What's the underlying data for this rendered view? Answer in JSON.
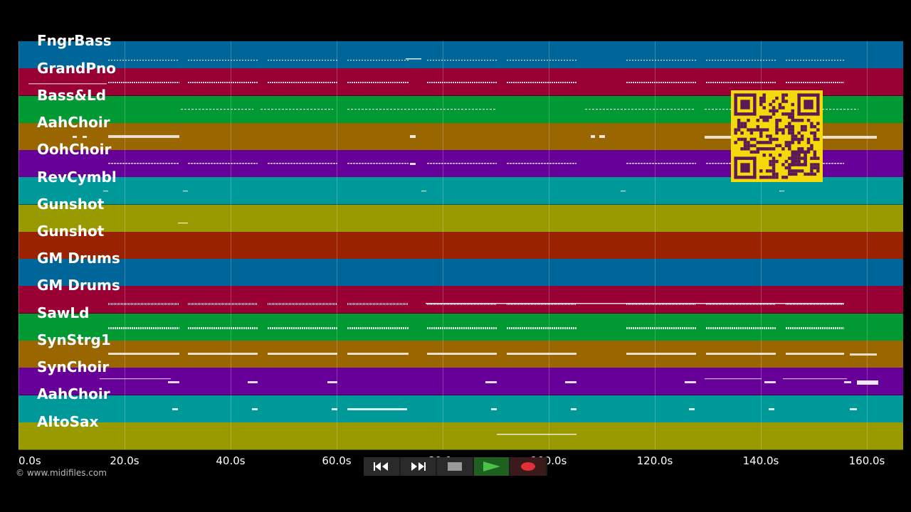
{
  "tracks": [
    {
      "label": "FngrBass",
      "color": "#006699"
    },
    {
      "label": "GrandPno",
      "color": "#990033"
    },
    {
      "label": "Bass&Ld",
      "color": "#009933"
    },
    {
      "label": "AahChoir",
      "color": "#996600"
    },
    {
      "label": "OohChoir",
      "color": "#660099"
    },
    {
      "label": "RevCymbl",
      "color": "#009999"
    },
    {
      "label": "Gunshot",
      "color": "#999900"
    },
    {
      "label": "Gunshot",
      "color": "#992200"
    },
    {
      "label": "GM Drums",
      "color": "#006699"
    },
    {
      "label": "GM Drums",
      "color": "#990033"
    },
    {
      "label": "SawLd",
      "color": "#009933"
    },
    {
      "label": "SynStrg1",
      "color": "#996600"
    },
    {
      "label": "SynChoir",
      "color": "#660099"
    },
    {
      "label": "AahChoir",
      "color": "#009999"
    },
    {
      "label": "AltoSax",
      "color": "#999900"
    }
  ],
  "timeline": {
    "ticks": [
      "0.0s",
      "20.0s",
      "40.0s",
      "60.0s",
      "80.0s",
      "100.0s",
      "120.0s",
      "140.0s",
      "160.0s"
    ]
  },
  "copyright": "© www.midifiles.com",
  "transport": {
    "buttons": [
      {
        "name": "rewind-button",
        "icon": "rewind-icon"
      },
      {
        "name": "fast-forward-button",
        "icon": "fast-forward-icon"
      },
      {
        "name": "stop-button",
        "icon": "stop-icon"
      },
      {
        "name": "play-button",
        "icon": "play-icon"
      },
      {
        "name": "record-button",
        "icon": "record-icon"
      }
    ]
  },
  "qr_code": {
    "icon": "qr-code-icon",
    "color": "#f5d90a",
    "fg": "#5a1a55"
  }
}
